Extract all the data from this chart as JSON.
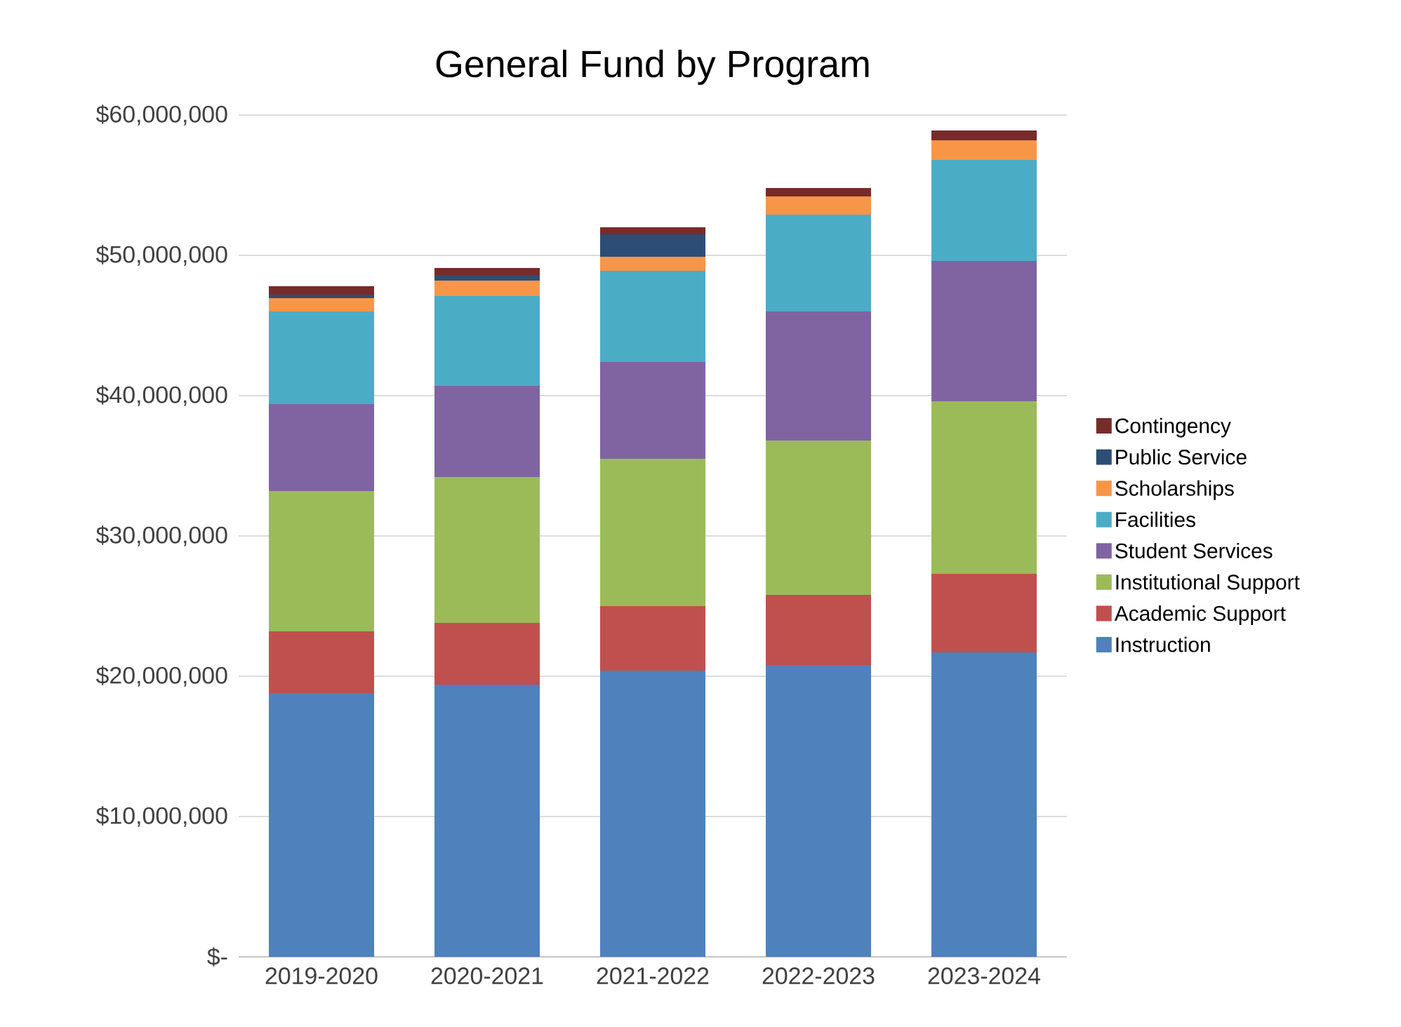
{
  "chart_data": {
    "type": "bar",
    "title": "General Fund by Program",
    "stacked": true,
    "grid": "y",
    "legend": "right",
    "categories": [
      "2019-2020",
      "2020-2021",
      "2021-2022",
      "2022-2023",
      "2023-2024"
    ],
    "ylim": [
      0,
      60000000
    ],
    "yticks": [
      {
        "value": 0,
        "label": "$-"
      },
      {
        "value": 10000000,
        "label": "$10,000,000"
      },
      {
        "value": 20000000,
        "label": "$20,000,000"
      },
      {
        "value": 30000000,
        "label": "$30,000,000"
      },
      {
        "value": 40000000,
        "label": "$40,000,000"
      },
      {
        "value": 50000000,
        "label": "$50,000,000"
      },
      {
        "value": 60000000,
        "label": "$60,000,000"
      }
    ],
    "series": [
      {
        "name": "Instruction",
        "color": "#4f81bd",
        "values": [
          18800000,
          19400000,
          20400000,
          20800000,
          21700000
        ]
      },
      {
        "name": "Academic Support",
        "color": "#c0504d",
        "values": [
          4400000,
          4400000,
          4600000,
          5000000,
          5600000
        ]
      },
      {
        "name": "Institutional Support",
        "color": "#9bbb59",
        "values": [
          10000000,
          10400000,
          10500000,
          11000000,
          12300000
        ]
      },
      {
        "name": "Student Services",
        "color": "#8064a2",
        "values": [
          6200000,
          6500000,
          6900000,
          9200000,
          10000000
        ]
      },
      {
        "name": "Facilities",
        "color": "#4bacc6",
        "values": [
          6600000,
          6400000,
          6500000,
          6900000,
          7200000
        ]
      },
      {
        "name": "Scholarships",
        "color": "#f79646",
        "values": [
          950000,
          1100000,
          1000000,
          1300000,
          1400000
        ]
      },
      {
        "name": "Public Service",
        "color": "#2c4d75",
        "values": [
          250000,
          400000,
          1600000,
          0,
          0
        ]
      },
      {
        "name": "Contingency",
        "color": "#772c2a",
        "values": [
          600000,
          500000,
          500000,
          600000,
          700000
        ]
      }
    ]
  }
}
